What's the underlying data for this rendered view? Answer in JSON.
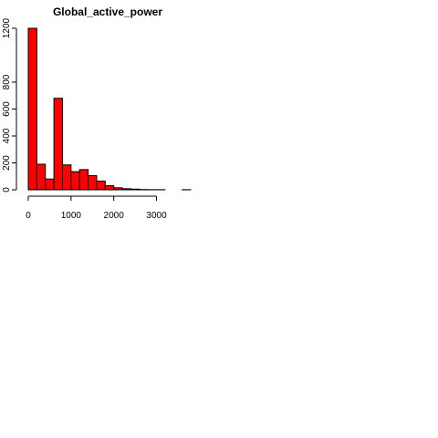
{
  "chart_data": {
    "type": "bar",
    "title": "Global_active_power",
    "xlabel": "",
    "ylabel": "",
    "bins": [
      {
        "x0": 0,
        "x1": 200,
        "count": 1200
      },
      {
        "x0": 200,
        "x1": 400,
        "count": 190
      },
      {
        "x0": 400,
        "x1": 600,
        "count": 80
      },
      {
        "x0": 600,
        "x1": 800,
        "count": 680
      },
      {
        "x0": 800,
        "x1": 1000,
        "count": 185
      },
      {
        "x0": 1000,
        "x1": 1200,
        "count": 135
      },
      {
        "x0": 1200,
        "x1": 1400,
        "count": 150
      },
      {
        "x0": 1400,
        "x1": 1600,
        "count": 105
      },
      {
        "x0": 1600,
        "x1": 1800,
        "count": 65
      },
      {
        "x0": 1800,
        "x1": 2000,
        "count": 30
      },
      {
        "x0": 2000,
        "x1": 2200,
        "count": 15
      },
      {
        "x0": 2200,
        "x1": 2400,
        "count": 8
      },
      {
        "x0": 2400,
        "x1": 2600,
        "count": 5
      },
      {
        "x0": 2600,
        "x1": 2800,
        "count": 2
      },
      {
        "x0": 2800,
        "x1": 3000,
        "count": 1
      },
      {
        "x0": 3000,
        "x1": 3200,
        "count": 1
      },
      {
        "x0": 3200,
        "x1": 3400,
        "count": 0
      },
      {
        "x0": 3400,
        "x1": 3600,
        "count": 0
      },
      {
        "x0": 3600,
        "x1": 3800,
        "count": 1
      }
    ],
    "x_ticks": [
      0,
      1000,
      2000,
      3000
    ],
    "y_ticks": [
      0,
      200,
      400,
      600,
      800,
      1200
    ],
    "xlim": [
      0,
      3800
    ],
    "ylim": [
      0,
      1200
    ],
    "bar_color": "#ff0000",
    "bar_border_color": "#000000",
    "grid": false,
    "legend": "none"
  }
}
